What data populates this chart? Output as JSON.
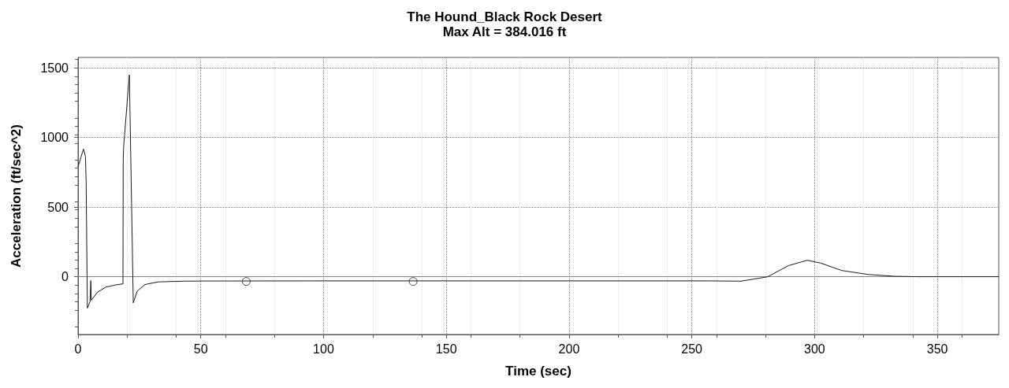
{
  "chart_data": {
    "type": "line",
    "title": "The Hound_Black Rock Desert",
    "subtitle": "Max Alt = 384.016 ft",
    "xlabel": "Time (sec)",
    "ylabel": "Acceleration (ft/sec^2)",
    "xlim": [
      0,
      375
    ],
    "xticks": [
      0,
      50,
      100,
      150,
      200,
      250,
      300,
      350
    ],
    "ylim": [
      -415,
      1575
    ],
    "yticks": [
      0,
      500,
      1000,
      1500
    ],
    "grid": true,
    "ref_lines": [
      {
        "axis": "y",
        "value": 0,
        "color": "#808080"
      }
    ],
    "series": [
      {
        "color": "#1a1a1a",
        "marker": "none",
        "x": [
          0,
          2.2,
          3.0,
          3.3,
          3.8,
          4.9,
          5.2,
          5.4,
          8,
          11.3,
          15,
          18.3,
          18.4,
          18.6,
          20.9,
          22.5,
          24.1,
          27.3,
          32.7,
          43.4,
          50.9,
          100,
          150,
          200,
          256.7,
          270,
          280.8,
          289.4,
          297,
          302.4,
          311,
          321.8,
          332.6,
          342.3,
          375
        ],
        "values": [
          790,
          917,
          866,
          687,
          -226,
          -179,
          -28,
          -169,
          -110,
          -75,
          -60,
          -51,
          838,
          941,
          1450,
          -188,
          -103,
          -56,
          -37,
          -32,
          -31,
          -30,
          -30,
          -30,
          -30,
          -32,
          -1,
          80,
          118,
          98,
          45,
          16,
          3,
          0,
          0
        ]
      },
      {
        "type": "scatter",
        "color": "#1a1a1a",
        "marker": "circle",
        "x": [
          68.5,
          136.5
        ],
        "values": [
          -34,
          -34
        ]
      }
    ]
  }
}
